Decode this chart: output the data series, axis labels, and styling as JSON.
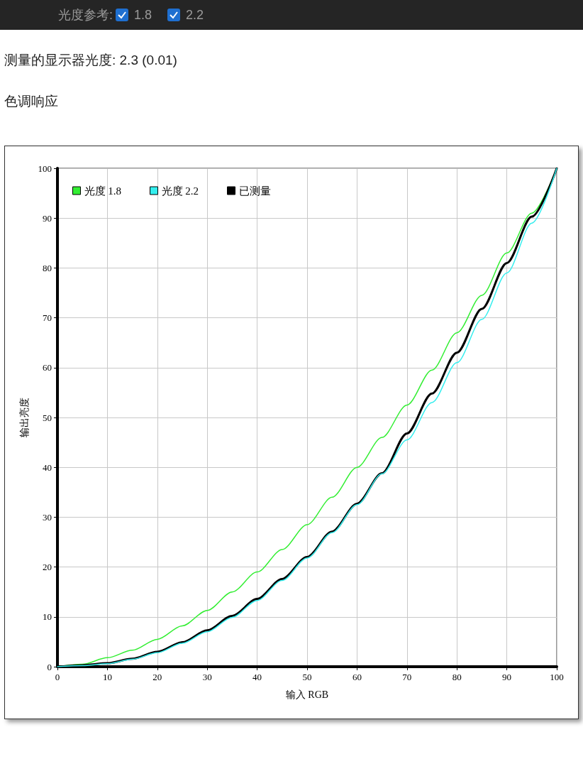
{
  "chart_data": {
    "type": "line",
    "title": "色调响应",
    "subtitle": "测量的显示器光度: 2.3 (0.01)",
    "annotations": [
      "光度参考:",
      "1.8",
      "2.2"
    ],
    "xlabel": "输入 RGB",
    "ylabel": "输出亮度",
    "x": [
      0,
      5,
      10,
      15,
      20,
      25,
      30,
      35,
      40,
      45,
      50,
      55,
      60,
      65,
      70,
      75,
      80,
      85,
      90,
      95,
      100
    ],
    "series": [
      {
        "name": "光度 1.8",
        "color": "#33ee33",
        "values": [
          0,
          0.5,
          1.8,
          3.3,
          5.5,
          8.2,
          11.3,
          15,
          19,
          23.5,
          28.5,
          34,
          40,
          46,
          52.5,
          59.5,
          67,
          74.5,
          83,
          91,
          100
        ]
      },
      {
        "name": "光度 2.2",
        "color": "#33eeee",
        "values": [
          0,
          0.2,
          0.6,
          1.5,
          2.8,
          4.7,
          7,
          9.9,
          13.3,
          17.3,
          21.8,
          26.9,
          32.5,
          38.7,
          45.5,
          53,
          61,
          69.7,
          79,
          89,
          100
        ]
      },
      {
        "name": "已测量",
        "color": "#000000",
        "values": [
          0,
          0.3,
          0.7,
          1.6,
          3,
          4.9,
          7.3,
          10.2,
          13.6,
          17.6,
          22,
          27.1,
          32.7,
          38.8,
          46.8,
          54.8,
          63,
          71.8,
          81,
          90.3,
          100
        ]
      }
    ],
    "xlim": [
      0,
      100
    ],
    "ylim": [
      0,
      100
    ],
    "xticks": [
      0,
      10,
      20,
      30,
      40,
      50,
      60,
      70,
      80,
      90,
      100
    ],
    "yticks": [
      0,
      10,
      20,
      30,
      40,
      50,
      60,
      70,
      80,
      90,
      100
    ],
    "grid": true,
    "legend": "top left",
    "marker": "none",
    "line_style": "solid"
  }
}
